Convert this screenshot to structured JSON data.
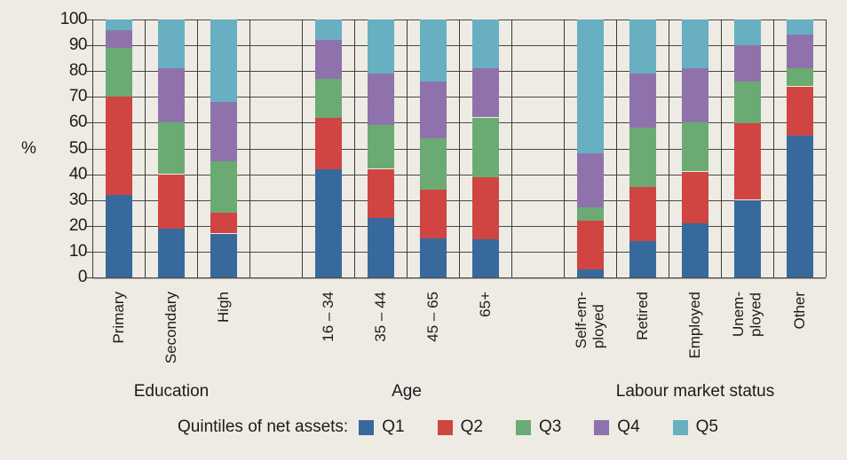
{
  "chart_data": {
    "type": "bar",
    "stacked": true,
    "title": "",
    "ylabel": "%",
    "xlabel": "",
    "ylim": [
      0,
      100
    ],
    "ytick_step": 10,
    "yticks": [
      0,
      10,
      20,
      30,
      40,
      50,
      60,
      70,
      80,
      90,
      100
    ],
    "grid": true,
    "legend_title": "Quintiles of net assets:",
    "legend_position": "bottom",
    "series": [
      {
        "name": "Q1",
        "color": "#38699c"
      },
      {
        "name": "Q2",
        "color": "#d04541"
      },
      {
        "name": "Q3",
        "color": "#6bab73"
      },
      {
        "name": "Q4",
        "color": "#8f72ab"
      },
      {
        "name": "Q5",
        "color": "#67afc1"
      }
    ],
    "groups": [
      {
        "label": "Education",
        "categories": [
          "Primary",
          "Secondary",
          "High"
        ],
        "values": [
          [
            32,
            38,
            19,
            7,
            4
          ],
          [
            19,
            21,
            20,
            21,
            19
          ],
          [
            17,
            8,
            20,
            23,
            32
          ]
        ]
      },
      {
        "label": "Age",
        "categories": [
          "16 – 34",
          "35 – 44",
          "45 – 65",
          "65+"
        ],
        "values": [
          [
            42,
            20,
            15,
            15,
            8
          ],
          [
            23,
            19,
            17,
            20,
            21
          ],
          [
            15,
            19,
            20,
            22,
            24
          ],
          [
            15,
            24,
            23,
            19,
            19
          ]
        ]
      },
      {
        "label": "Labour market status",
        "categories": [
          "Self-em-\nployed",
          "Retired",
          "Employed",
          "Unem-\nployed",
          "Other"
        ],
        "values": [
          [
            3,
            19,
            5,
            21,
            52
          ],
          [
            14,
            21,
            23,
            21,
            21
          ],
          [
            21,
            20,
            19,
            21,
            19
          ],
          [
            30,
            30,
            16,
            14,
            10
          ],
          [
            55,
            19,
            7,
            13,
            6
          ]
        ]
      }
    ],
    "colors": {
      "background": "#edebe4",
      "gridline": "#4a4843",
      "text": "#1d1c1a"
    }
  }
}
